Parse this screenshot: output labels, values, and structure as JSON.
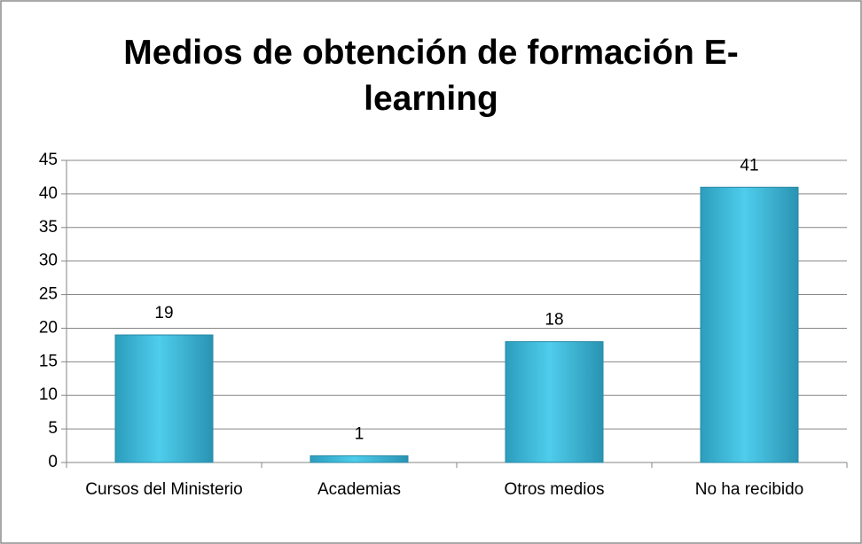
{
  "chart_data": {
    "type": "bar",
    "title": "Medios de obtención de formación E-learning",
    "categories": [
      "Cursos del Ministerio",
      "Academias",
      "Otros medios",
      "No ha recibido"
    ],
    "values": [
      19,
      1,
      18,
      41
    ],
    "color": "#3bb6d8",
    "ylim": [
      0,
      45
    ],
    "yticks": [
      0,
      5,
      10,
      15,
      20,
      25,
      30,
      35,
      40,
      45
    ],
    "grid": true
  }
}
